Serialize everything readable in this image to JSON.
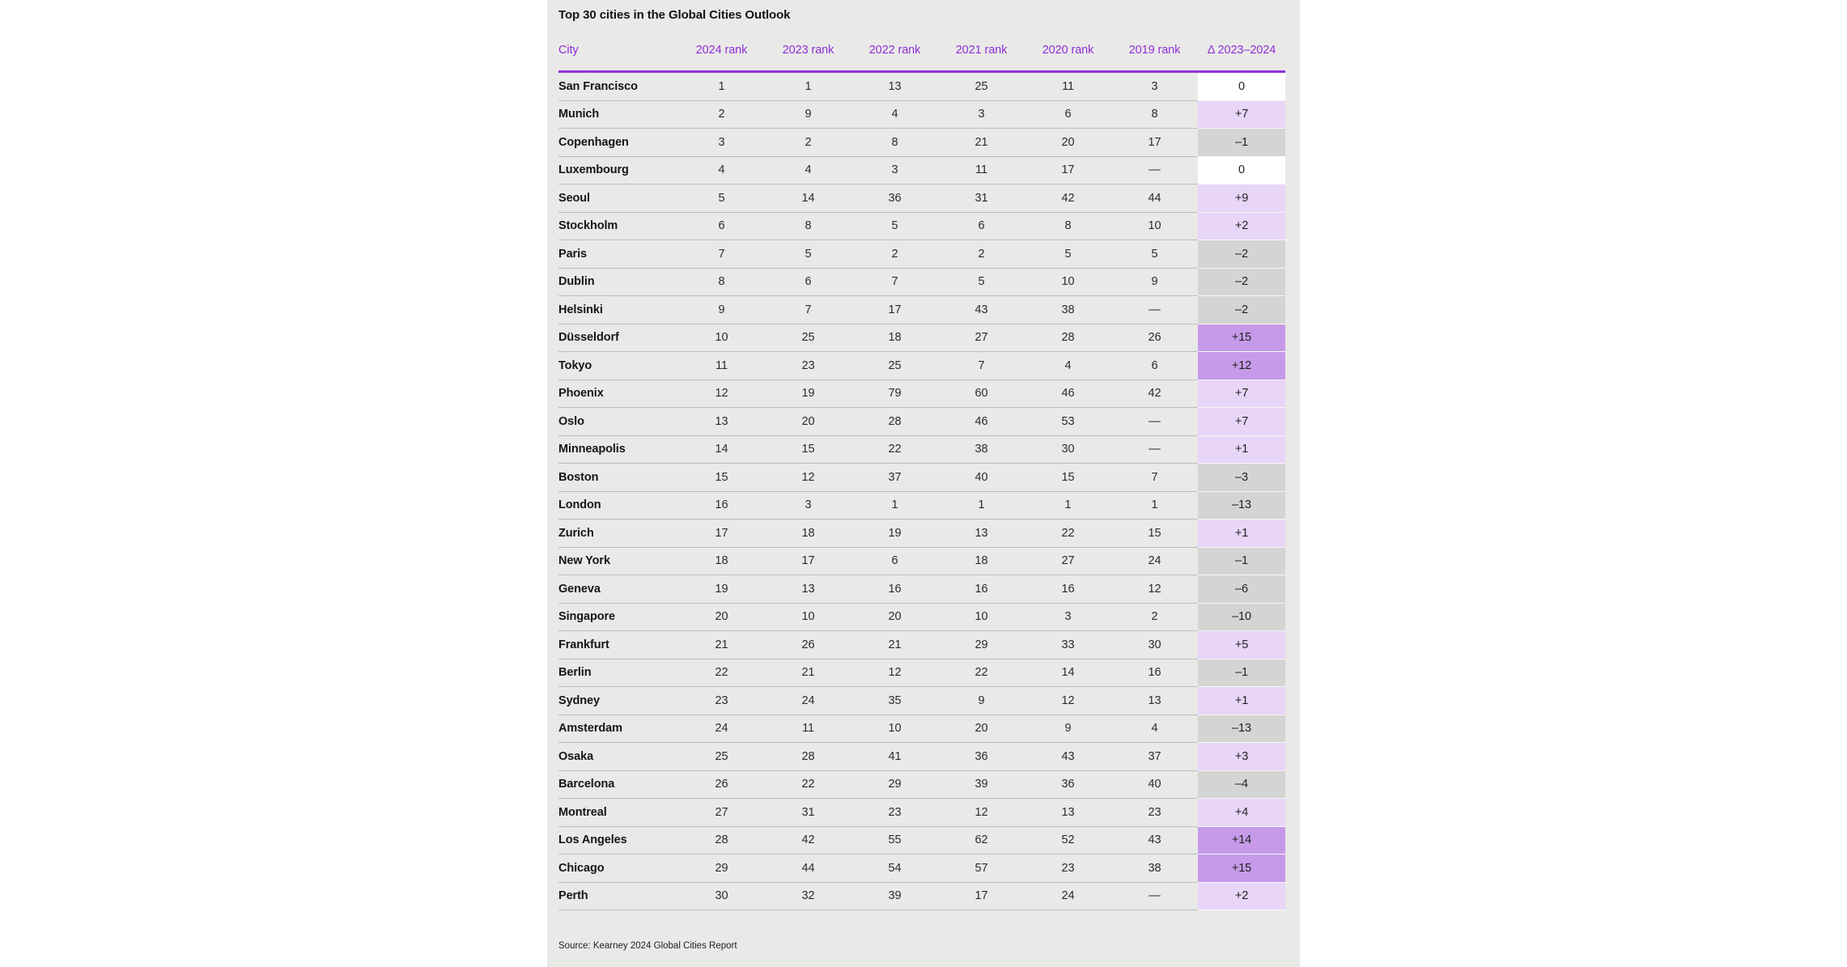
{
  "chart_data": {
    "type": "table",
    "title": "Top 30 cities in the Global Cities Outlook",
    "columns": [
      "City",
      "2024 rank",
      "2023 rank",
      "2022 rank",
      "2021 rank",
      "2020 rank",
      "2019 rank",
      "Δ 2023–2024"
    ],
    "rows": [
      {
        "city": "San Francisco",
        "ranks": [
          "1",
          "1",
          "13",
          "25",
          "11",
          "3"
        ],
        "delta": "0",
        "delta_value": 0
      },
      {
        "city": "Munich",
        "ranks": [
          "2",
          "9",
          "4",
          "3",
          "6",
          "8"
        ],
        "delta": "+7",
        "delta_value": 7
      },
      {
        "city": "Copenhagen",
        "ranks": [
          "3",
          "2",
          "8",
          "21",
          "20",
          "17"
        ],
        "delta": "–1",
        "delta_value": -1
      },
      {
        "city": "Luxembourg",
        "ranks": [
          "4",
          "4",
          "3",
          "11",
          "17",
          "—"
        ],
        "delta": "0",
        "delta_value": 0
      },
      {
        "city": "Seoul",
        "ranks": [
          "5",
          "14",
          "36",
          "31",
          "42",
          "44"
        ],
        "delta": "+9",
        "delta_value": 9
      },
      {
        "city": "Stockholm",
        "ranks": [
          "6",
          "8",
          "5",
          "6",
          "8",
          "10"
        ],
        "delta": "+2",
        "delta_value": 2
      },
      {
        "city": "Paris",
        "ranks": [
          "7",
          "5",
          "2",
          "2",
          "5",
          "5"
        ],
        "delta": "–2",
        "delta_value": -2
      },
      {
        "city": "Dublin",
        "ranks": [
          "8",
          "6",
          "7",
          "5",
          "10",
          "9"
        ],
        "delta": "–2",
        "delta_value": -2
      },
      {
        "city": "Helsinki",
        "ranks": [
          "9",
          "7",
          "17",
          "43",
          "38",
          "—"
        ],
        "delta": "–2",
        "delta_value": -2
      },
      {
        "city": "Düsseldorf",
        "ranks": [
          "10",
          "25",
          "18",
          "27",
          "28",
          "26"
        ],
        "delta": "+15",
        "delta_value": 15
      },
      {
        "city": "Tokyo",
        "ranks": [
          "11",
          "23",
          "25",
          "7",
          "4",
          "6"
        ],
        "delta": "+12",
        "delta_value": 12
      },
      {
        "city": "Phoenix",
        "ranks": [
          "12",
          "19",
          "79",
          "60",
          "46",
          "42"
        ],
        "delta": "+7",
        "delta_value": 7
      },
      {
        "city": "Oslo",
        "ranks": [
          "13",
          "20",
          "28",
          "46",
          "53",
          "—"
        ],
        "delta": "+7",
        "delta_value": 7
      },
      {
        "city": "Minneapolis",
        "ranks": [
          "14",
          "15",
          "22",
          "38",
          "30",
          "—"
        ],
        "delta": "+1",
        "delta_value": 1
      },
      {
        "city": "Boston",
        "ranks": [
          "15",
          "12",
          "37",
          "40",
          "15",
          "7"
        ],
        "delta": "–3",
        "delta_value": -3
      },
      {
        "city": "London",
        "ranks": [
          "16",
          "3",
          "1",
          "1",
          "1",
          "1"
        ],
        "delta": "–13",
        "delta_value": -13
      },
      {
        "city": "Zurich",
        "ranks": [
          "17",
          "18",
          "19",
          "13",
          "22",
          "15"
        ],
        "delta": "+1",
        "delta_value": 1
      },
      {
        "city": "New York",
        "ranks": [
          "18",
          "17",
          "6",
          "18",
          "27",
          "24"
        ],
        "delta": "–1",
        "delta_value": -1
      },
      {
        "city": "Geneva",
        "ranks": [
          "19",
          "13",
          "16",
          "16",
          "16",
          "12"
        ],
        "delta": "–6",
        "delta_value": -6
      },
      {
        "city": "Singapore",
        "ranks": [
          "20",
          "10",
          "20",
          "10",
          "3",
          "2"
        ],
        "delta": "–10",
        "delta_value": -10
      },
      {
        "city": "Frankfurt",
        "ranks": [
          "21",
          "26",
          "21",
          "29",
          "33",
          "30"
        ],
        "delta": "+5",
        "delta_value": 5
      },
      {
        "city": "Berlin",
        "ranks": [
          "22",
          "21",
          "12",
          "22",
          "14",
          "16"
        ],
        "delta": "–1",
        "delta_value": -1
      },
      {
        "city": "Sydney",
        "ranks": [
          "23",
          "24",
          "35",
          "9",
          "12",
          "13"
        ],
        "delta": "+1",
        "delta_value": 1
      },
      {
        "city": "Amsterdam",
        "ranks": [
          "24",
          "11",
          "10",
          "20",
          "9",
          "4"
        ],
        "delta": "–13",
        "delta_value": -13
      },
      {
        "city": "Osaka",
        "ranks": [
          "25",
          "28",
          "41",
          "36",
          "43",
          "37"
        ],
        "delta": "+3",
        "delta_value": 3
      },
      {
        "city": "Barcelona",
        "ranks": [
          "26",
          "22",
          "29",
          "39",
          "36",
          "40"
        ],
        "delta": "–4",
        "delta_value": -4
      },
      {
        "city": "Montreal",
        "ranks": [
          "27",
          "31",
          "23",
          "12",
          "13",
          "23"
        ],
        "delta": "+4",
        "delta_value": 4
      },
      {
        "city": "Los Angeles",
        "ranks": [
          "28",
          "42",
          "55",
          "62",
          "52",
          "43"
        ],
        "delta": "+14",
        "delta_value": 14
      },
      {
        "city": "Chicago",
        "ranks": [
          "29",
          "44",
          "54",
          "57",
          "23",
          "38"
        ],
        "delta": "+15",
        "delta_value": 15
      },
      {
        "city": "Perth",
        "ranks": [
          "30",
          "32",
          "39",
          "17",
          "24",
          "—"
        ],
        "delta": "+2",
        "delta_value": 2
      }
    ],
    "source": "Source: Kearney 2024 Global Cities Report"
  },
  "colors": {
    "header_purple": "#8f2ed6",
    "rule_purple": "#9133da",
    "delta_up_strong": "#c69ae9",
    "delta_up": "#e8d5f7",
    "delta_zero": "#ffffff",
    "delta_down": "#d4d4d2",
    "panel_bg": "#e9e9e7"
  }
}
